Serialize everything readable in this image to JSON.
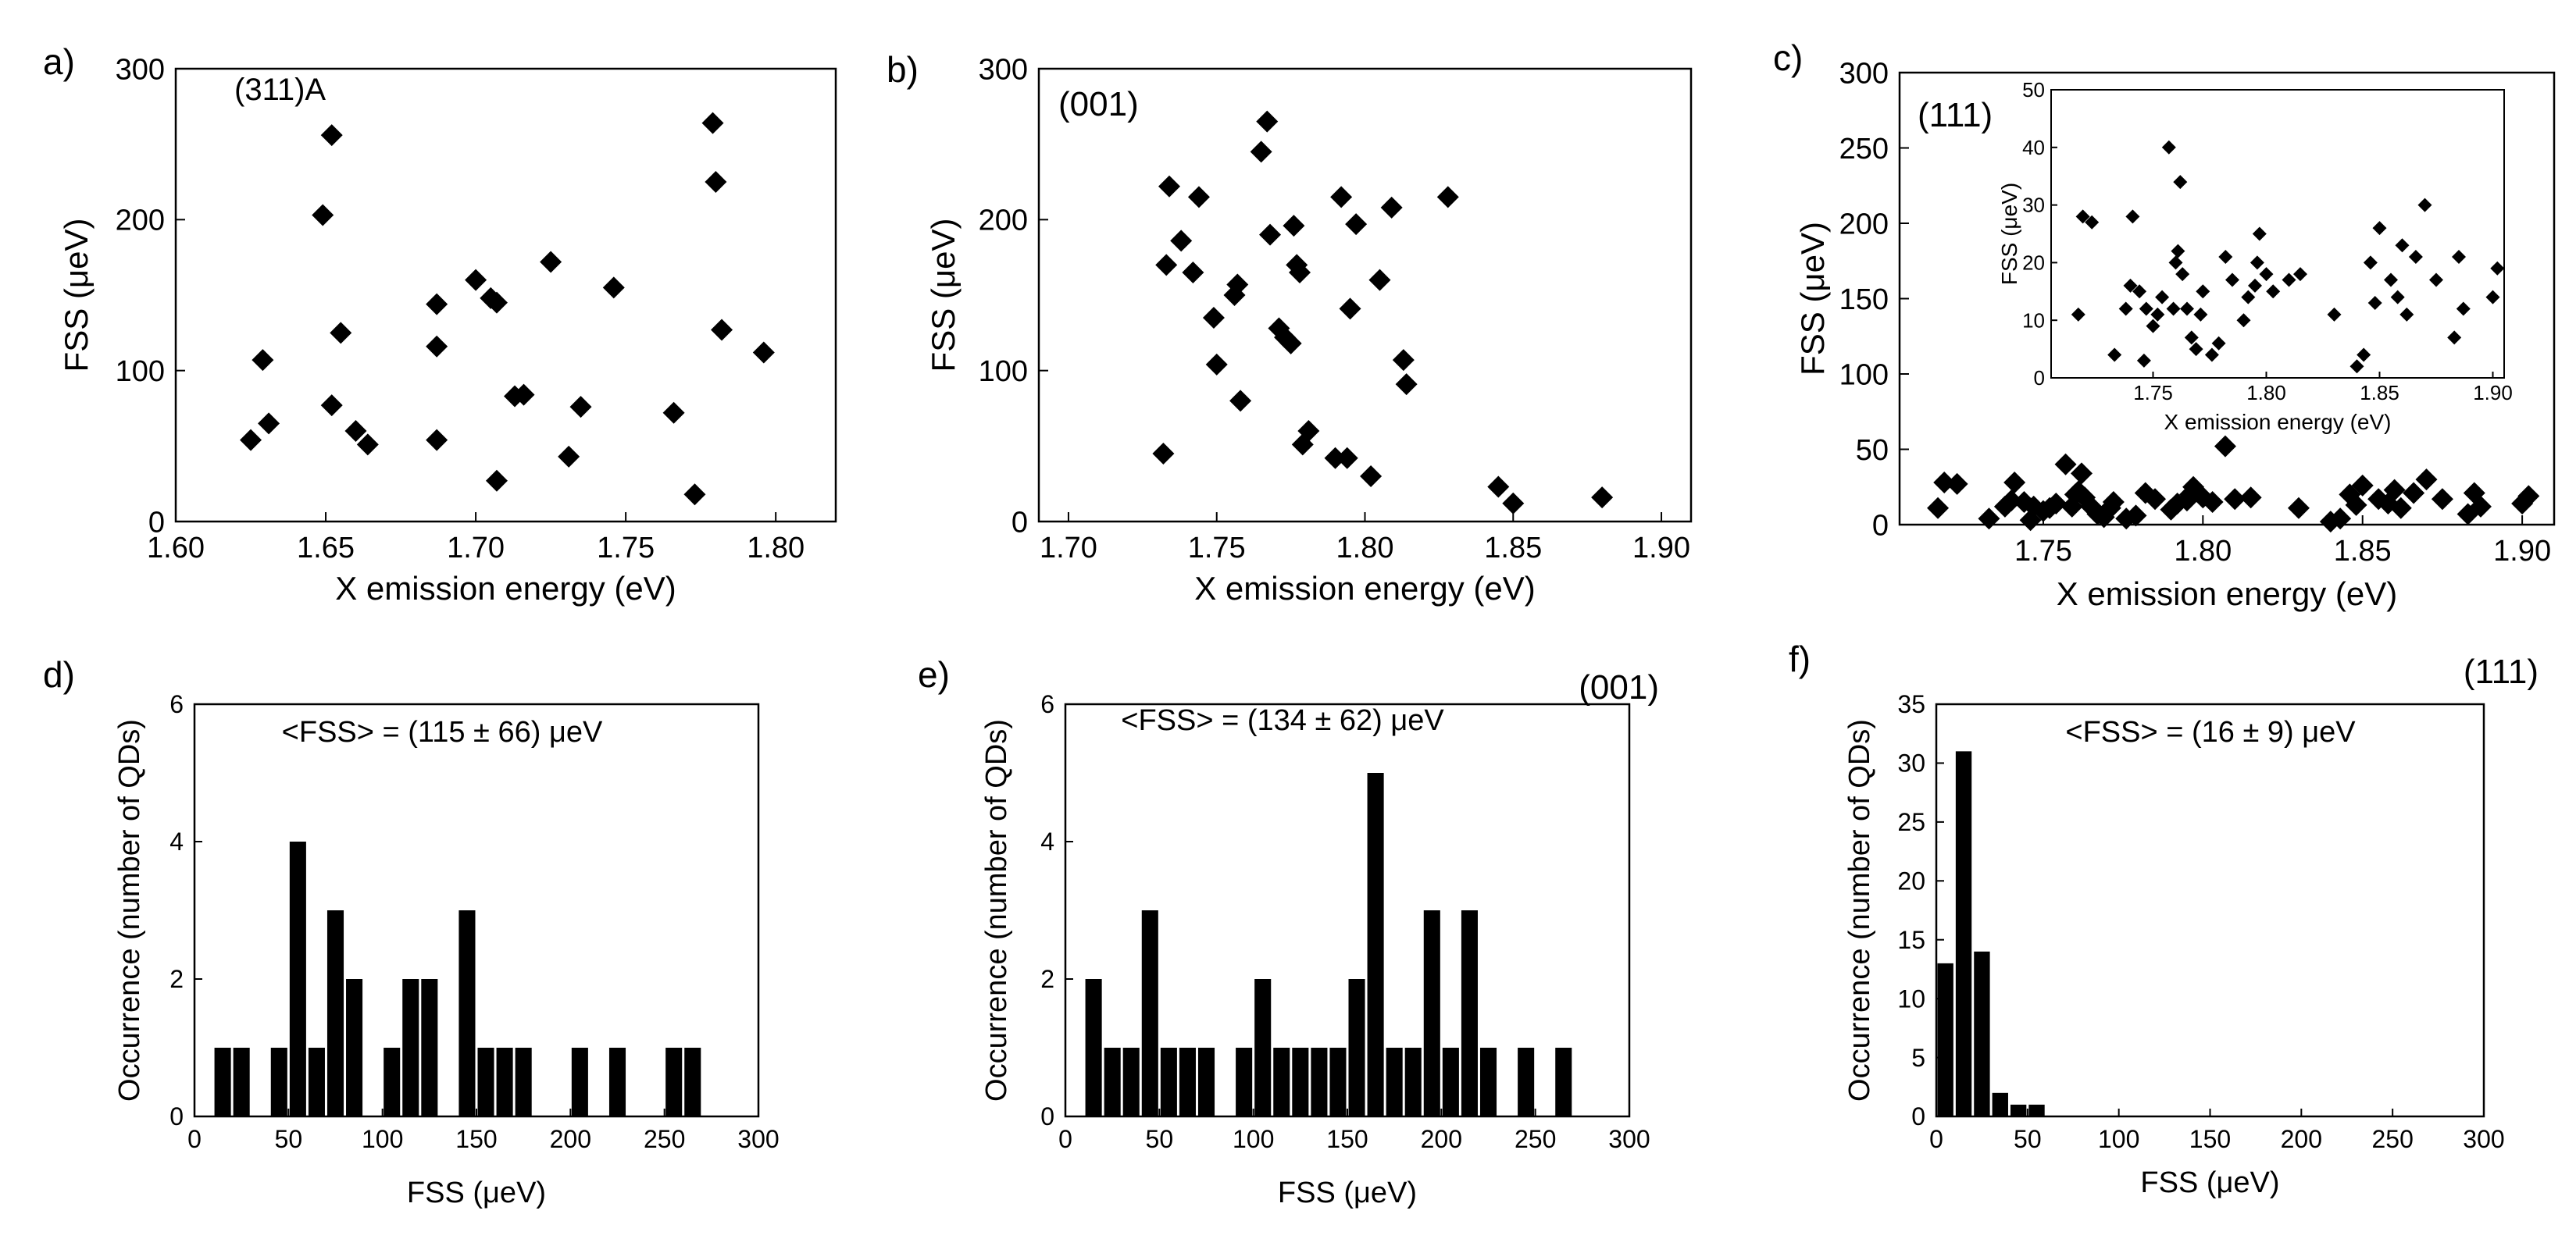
{
  "chart_data": [
    {
      "panel": "a)",
      "type": "scatter",
      "annotation": "(311)A",
      "xlabel": "X emission energy (eV)",
      "ylabel": "FSS (μeV)",
      "xlim": [
        1.6,
        1.82
      ],
      "ylim": [
        0,
        300
      ],
      "xticks": [
        1.6,
        1.65,
        1.7,
        1.75,
        1.8
      ],
      "xtick_labels": [
        "1.60",
        "1.65",
        "1.70",
        "1.75",
        "1.80"
      ],
      "yticks": [
        0,
        100,
        200,
        300
      ],
      "ytick_labels": [
        "0",
        "100",
        "200",
        "300"
      ],
      "points": [
        [
          1.625,
          54
        ],
        [
          1.629,
          107
        ],
        [
          1.631,
          65
        ],
        [
          1.649,
          203
        ],
        [
          1.652,
          256
        ],
        [
          1.652,
          77
        ],
        [
          1.655,
          125
        ],
        [
          1.66,
          60
        ],
        [
          1.664,
          51
        ],
        [
          1.687,
          144
        ],
        [
          1.687,
          116
        ],
        [
          1.687,
          54
        ],
        [
          1.7,
          160
        ],
        [
          1.705,
          148
        ],
        [
          1.707,
          145
        ],
        [
          1.707,
          27
        ],
        [
          1.713,
          83
        ],
        [
          1.716,
          84
        ],
        [
          1.725,
          172
        ],
        [
          1.731,
          43
        ],
        [
          1.735,
          76
        ],
        [
          1.746,
          155
        ],
        [
          1.766,
          72
        ],
        [
          1.773,
          18
        ],
        [
          1.779,
          264
        ],
        [
          1.78,
          225
        ],
        [
          1.782,
          127
        ],
        [
          1.796,
          112
        ]
      ]
    },
    {
      "panel": "b)",
      "type": "scatter",
      "annotation": "(001)",
      "xlabel": "X emission energy (eV)",
      "ylabel": "FSS (μeV)",
      "xlim": [
        1.69,
        1.91
      ],
      "ylim": [
        0,
        300
      ],
      "xticks": [
        1.7,
        1.75,
        1.8,
        1.85,
        1.9
      ],
      "xtick_labels": [
        "1.70",
        "1.75",
        "1.80",
        "1.85",
        "1.90"
      ],
      "yticks": [
        0,
        100,
        200,
        300
      ],
      "ytick_labels": [
        "0",
        "100",
        "200",
        "300"
      ],
      "points": [
        [
          1.732,
          45
        ],
        [
          1.733,
          170
        ],
        [
          1.734,
          222
        ],
        [
          1.738,
          186
        ],
        [
          1.742,
          165
        ],
        [
          1.744,
          215
        ],
        [
          1.749,
          135
        ],
        [
          1.75,
          104
        ],
        [
          1.756,
          150
        ],
        [
          1.757,
          157
        ],
        [
          1.758,
          80
        ],
        [
          1.765,
          245
        ],
        [
          1.767,
          265
        ],
        [
          1.768,
          190
        ],
        [
          1.771,
          128
        ],
        [
          1.773,
          122
        ],
        [
          1.775,
          118
        ],
        [
          1.776,
          196
        ],
        [
          1.777,
          170
        ],
        [
          1.778,
          165
        ],
        [
          1.779,
          51
        ],
        [
          1.781,
          60
        ],
        [
          1.79,
          42
        ],
        [
          1.792,
          215
        ],
        [
          1.794,
          42
        ],
        [
          1.795,
          141
        ],
        [
          1.797,
          197
        ],
        [
          1.802,
          30
        ],
        [
          1.805,
          160
        ],
        [
          1.809,
          208
        ],
        [
          1.813,
          107
        ],
        [
          1.814,
          91
        ],
        [
          1.828,
          215
        ],
        [
          1.845,
          23
        ],
        [
          1.85,
          12
        ],
        [
          1.88,
          16
        ]
      ]
    },
    {
      "panel": "c)",
      "type": "scatter",
      "annotation": "(111)",
      "xlabel": "X emission energy (eV)",
      "ylabel": "FSS (μeV)",
      "xlim": [
        1.705,
        1.91
      ],
      "ylim": [
        0,
        300
      ],
      "xticks": [
        1.75,
        1.8,
        1.85,
        1.9
      ],
      "xtick_labels": [
        "1.75",
        "1.80",
        "1.85",
        "1.90"
      ],
      "yticks": [
        0,
        50,
        100,
        150,
        200,
        250,
        300
      ],
      "ytick_labels": [
        "0",
        "50",
        "100",
        "150",
        "200",
        "250",
        "300"
      ],
      "points": [
        [
          1.717,
          11
        ],
        [
          1.719,
          28
        ],
        [
          1.723,
          27
        ],
        [
          1.733,
          4
        ],
        [
          1.738,
          12
        ],
        [
          1.74,
          16
        ],
        [
          1.741,
          28
        ],
        [
          1.744,
          15
        ],
        [
          1.746,
          3
        ],
        [
          1.747,
          12
        ],
        [
          1.75,
          9
        ],
        [
          1.752,
          11
        ],
        [
          1.754,
          14
        ],
        [
          1.757,
          40
        ],
        [
          1.759,
          12
        ],
        [
          1.76,
          20
        ],
        [
          1.761,
          22
        ],
        [
          1.762,
          34
        ],
        [
          1.763,
          18
        ],
        [
          1.765,
          12
        ],
        [
          1.767,
          7
        ],
        [
          1.769,
          5
        ],
        [
          1.771,
          11
        ],
        [
          1.772,
          15
        ],
        [
          1.776,
          4
        ],
        [
          1.779,
          6
        ],
        [
          1.782,
          21
        ],
        [
          1.785,
          17
        ],
        [
          1.79,
          10
        ],
        [
          1.792,
          14
        ],
        [
          1.795,
          16
        ],
        [
          1.796,
          20
        ],
        [
          1.797,
          25
        ],
        [
          1.8,
          18
        ],
        [
          1.803,
          15
        ],
        [
          1.807,
          52
        ],
        [
          1.81,
          17
        ],
        [
          1.815,
          18
        ],
        [
          1.83,
          11
        ],
        [
          1.84,
          2
        ],
        [
          1.843,
          4
        ],
        [
          1.846,
          20
        ],
        [
          1.848,
          13
        ],
        [
          1.85,
          26
        ],
        [
          1.855,
          17
        ],
        [
          1.858,
          14
        ],
        [
          1.86,
          23
        ],
        [
          1.862,
          11
        ],
        [
          1.866,
          21
        ],
        [
          1.87,
          30
        ],
        [
          1.875,
          17
        ],
        [
          1.883,
          7
        ],
        [
          1.885,
          21
        ],
        [
          1.887,
          12
        ],
        [
          1.9,
          14
        ],
        [
          1.902,
          19
        ]
      ]
    },
    {
      "panel": "c) inset",
      "type": "scatter",
      "xlabel": "X emission energy (eV)",
      "ylabel": "FSS (μeV)",
      "xlim": [
        1.705,
        1.905
      ],
      "ylim": [
        0,
        50
      ],
      "xticks": [
        1.75,
        1.8,
        1.85,
        1.9
      ],
      "xtick_labels": [
        "1.75",
        "1.80",
        "1.85",
        "1.90"
      ],
      "yticks": [
        0,
        10,
        20,
        30,
        40,
        50
      ],
      "ytick_labels": [
        "0",
        "10",
        "20",
        "30",
        "40",
        "50"
      ],
      "points": [
        [
          1.717,
          11
        ],
        [
          1.719,
          28
        ],
        [
          1.723,
          27
        ],
        [
          1.733,
          4
        ],
        [
          1.738,
          12
        ],
        [
          1.74,
          16
        ],
        [
          1.741,
          28
        ],
        [
          1.744,
          15
        ],
        [
          1.746,
          3
        ],
        [
          1.747,
          12
        ],
        [
          1.75,
          9
        ],
        [
          1.752,
          11
        ],
        [
          1.754,
          14
        ],
        [
          1.757,
          40
        ],
        [
          1.759,
          12
        ],
        [
          1.76,
          20
        ],
        [
          1.761,
          22
        ],
        [
          1.762,
          34
        ],
        [
          1.763,
          18
        ],
        [
          1.765,
          12
        ],
        [
          1.767,
          7
        ],
        [
          1.769,
          5
        ],
        [
          1.771,
          11
        ],
        [
          1.772,
          15
        ],
        [
          1.776,
          4
        ],
        [
          1.779,
          6
        ],
        [
          1.782,
          21
        ],
        [
          1.785,
          17
        ],
        [
          1.79,
          10
        ],
        [
          1.792,
          14
        ],
        [
          1.795,
          16
        ],
        [
          1.796,
          20
        ],
        [
          1.797,
          25
        ],
        [
          1.8,
          18
        ],
        [
          1.803,
          15
        ],
        [
          1.81,
          17
        ],
        [
          1.815,
          18
        ],
        [
          1.83,
          11
        ],
        [
          1.84,
          2
        ],
        [
          1.843,
          4
        ],
        [
          1.846,
          20
        ],
        [
          1.848,
          13
        ],
        [
          1.85,
          26
        ],
        [
          1.855,
          17
        ],
        [
          1.858,
          14
        ],
        [
          1.86,
          23
        ],
        [
          1.862,
          11
        ],
        [
          1.866,
          21
        ],
        [
          1.87,
          30
        ],
        [
          1.875,
          17
        ],
        [
          1.883,
          7
        ],
        [
          1.885,
          21
        ],
        [
          1.887,
          12
        ],
        [
          1.9,
          14
        ],
        [
          1.902,
          19
        ]
      ]
    },
    {
      "panel": "d)",
      "type": "bar",
      "annotation": "<FSS> = (115 ± 66) μeV",
      "xlabel": "FSS (μeV)",
      "ylabel": "Occurrence (number of QDs)",
      "xlim": [
        0,
        300
      ],
      "ylim": [
        0,
        6
      ],
      "xticks": [
        0,
        50,
        100,
        150,
        200,
        250,
        300
      ],
      "xtick_labels": [
        "0",
        "50",
        "100",
        "150",
        "200",
        "250",
        "300"
      ],
      "yticks": [
        0,
        2,
        4,
        6
      ],
      "ytick_labels": [
        "0",
        "2",
        "4",
        "6"
      ],
      "bin_width": 10,
      "bins": [
        [
          15,
          1
        ],
        [
          25,
          1
        ],
        [
          45,
          1
        ],
        [
          55,
          4
        ],
        [
          65,
          1
        ],
        [
          75,
          3
        ],
        [
          85,
          2
        ],
        [
          105,
          1
        ],
        [
          115,
          2
        ],
        [
          125,
          2
        ],
        [
          145,
          3
        ],
        [
          155,
          1
        ],
        [
          165,
          1
        ],
        [
          175,
          1
        ],
        [
          205,
          1
        ],
        [
          225,
          1
        ],
        [
          255,
          1
        ],
        [
          265,
          1
        ]
      ]
    },
    {
      "panel": "e)",
      "type": "bar",
      "annotation": "<FSS> = (134 ± 62) μeV",
      "corner_label": "(001)",
      "xlabel": "FSS (μeV)",
      "ylabel": "Occurrence (number of QDs)",
      "xlim": [
        0,
        300
      ],
      "ylim": [
        0,
        6
      ],
      "xticks": [
        0,
        50,
        100,
        150,
        200,
        250,
        300
      ],
      "xtick_labels": [
        "0",
        "50",
        "100",
        "150",
        "200",
        "250",
        "300"
      ],
      "yticks": [
        0,
        2,
        4,
        6
      ],
      "ytick_labels": [
        "0",
        "2",
        "4",
        "6"
      ],
      "bin_width": 10,
      "bins": [
        [
          15,
          2
        ],
        [
          25,
          1
        ],
        [
          35,
          1
        ],
        [
          45,
          3
        ],
        [
          55,
          1
        ],
        [
          65,
          1
        ],
        [
          75,
          1
        ],
        [
          95,
          1
        ],
        [
          105,
          2
        ],
        [
          115,
          1
        ],
        [
          125,
          1
        ],
        [
          135,
          1
        ],
        [
          145,
          1
        ],
        [
          155,
          2
        ],
        [
          165,
          5
        ],
        [
          175,
          1
        ],
        [
          185,
          1
        ],
        [
          195,
          3
        ],
        [
          205,
          1
        ],
        [
          215,
          3
        ],
        [
          225,
          1
        ],
        [
          245,
          1
        ],
        [
          265,
          1
        ]
      ]
    },
    {
      "panel": "f)",
      "type": "bar",
      "annotation": "<FSS> = (16 ± 9) μeV",
      "corner_label": "(111)",
      "xlabel": "FSS (μeV)",
      "ylabel": "Occurrence (number of QDs)",
      "xlim": [
        0,
        300
      ],
      "ylim": [
        0,
        35
      ],
      "xticks": [
        0,
        50,
        100,
        150,
        200,
        250,
        300
      ],
      "xtick_labels": [
        "0",
        "50",
        "100",
        "150",
        "200",
        "250",
        "300"
      ],
      "yticks": [
        0,
        5,
        10,
        15,
        20,
        25,
        30,
        35
      ],
      "ytick_labels": [
        "0",
        "5",
        "10",
        "15",
        "20",
        "25",
        "30",
        "35"
      ],
      "bin_width": 10,
      "bins": [
        [
          5,
          13
        ],
        [
          15,
          31
        ],
        [
          25,
          14
        ],
        [
          35,
          2
        ],
        [
          45,
          1
        ],
        [
          55,
          1
        ]
      ]
    }
  ]
}
